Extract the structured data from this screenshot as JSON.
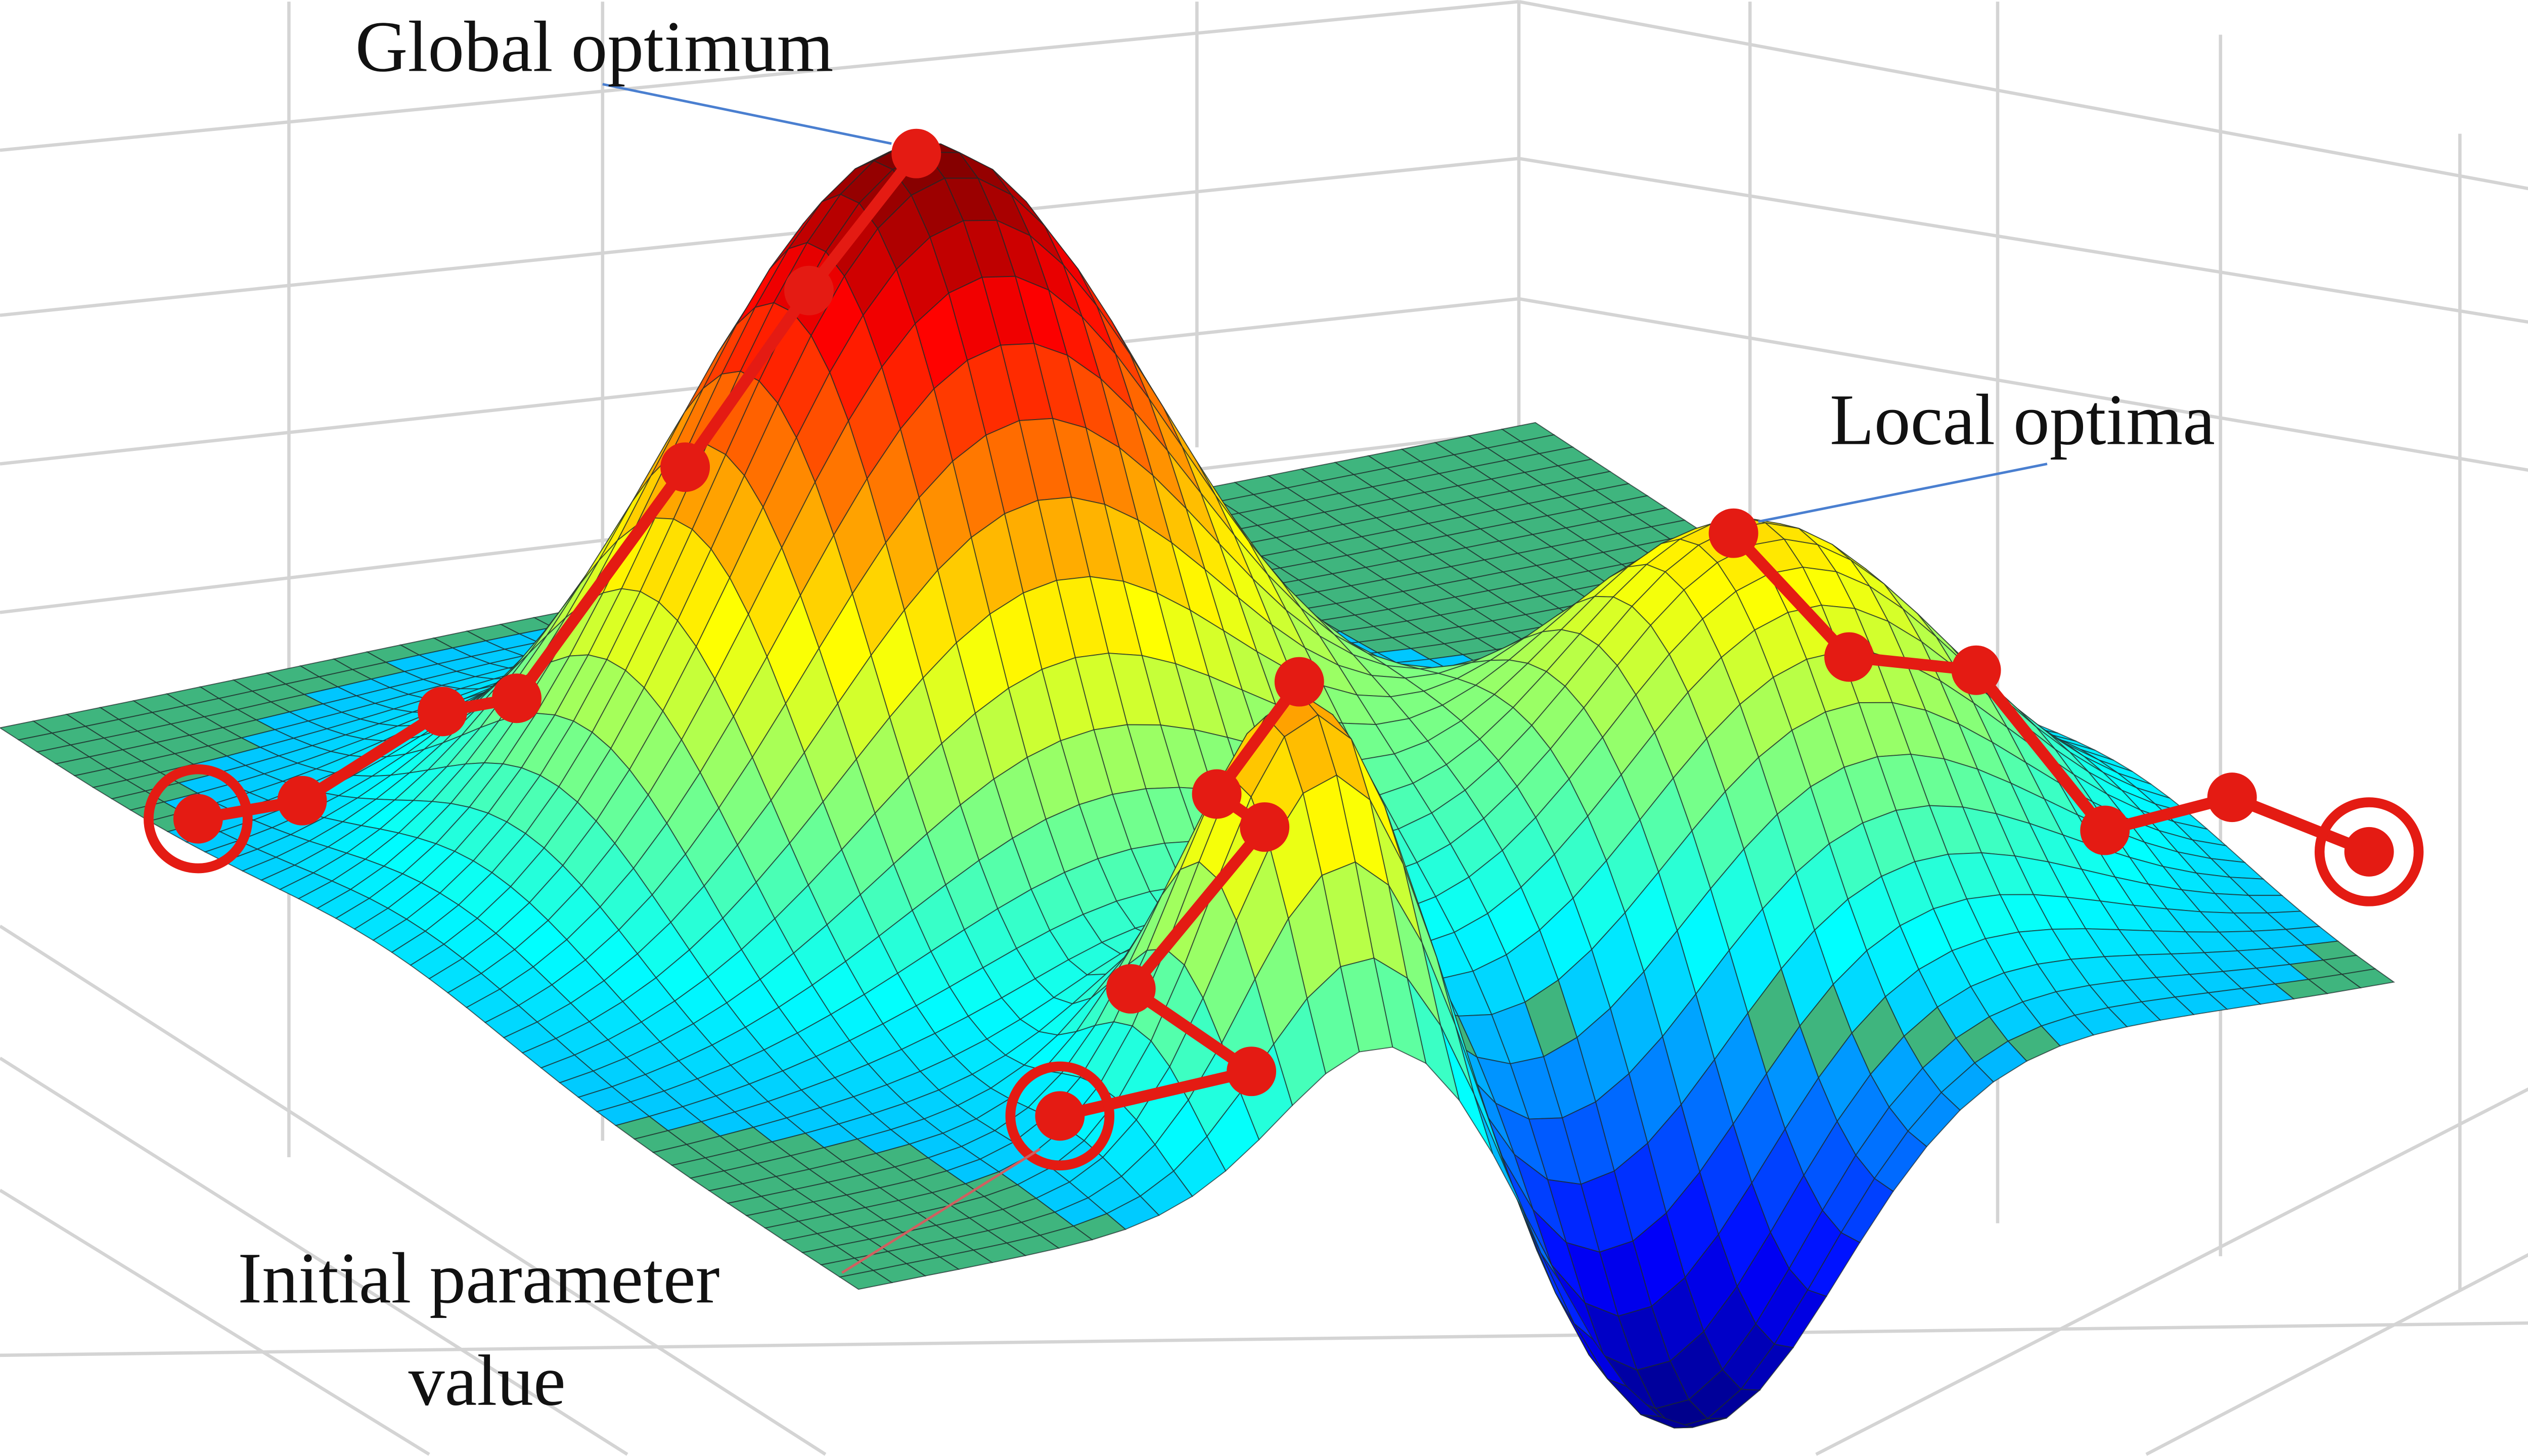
{
  "labels": {
    "global": "Global optimum",
    "local": "Local optima",
    "initial": [
      "Initial parameter",
      "value"
    ]
  }
}
